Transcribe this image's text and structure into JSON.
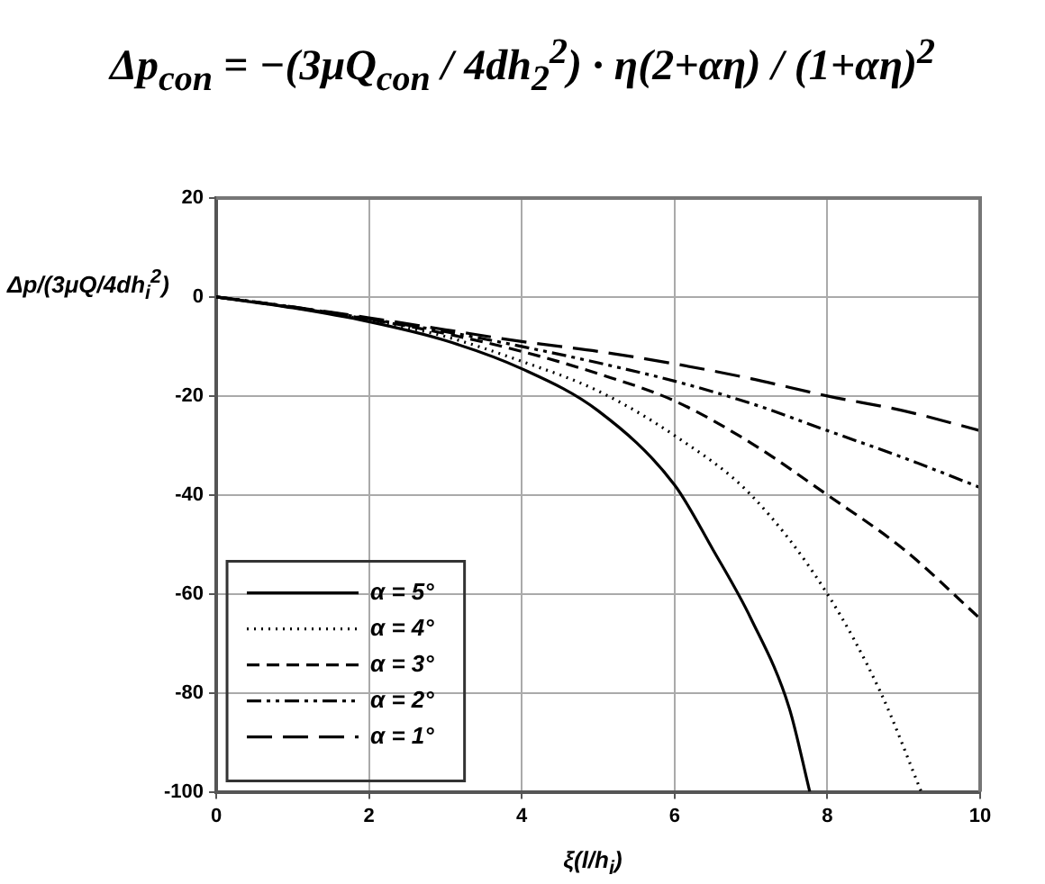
{
  "chart_data": {
    "type": "line",
    "title": "Δp$_{con}$ = −(3μQ$_{con}$ / 4dh$_{2}$$^{2}$) · η(2+αη) / (1+αη)$^{2}$",
    "xlabel": "ξ(l/h$_{i}$)",
    "ylabel": "Δp/(3μQ/4dh$_{i}$$^{2}$)",
    "xlim": [
      0,
      10
    ],
    "xticks": [
      0,
      2,
      4,
      6,
      8,
      10
    ],
    "ylim": [
      -100,
      20
    ],
    "yticks": [
      -100,
      -80,
      -60,
      -40,
      -20,
      0,
      20
    ],
    "grid": true,
    "legend": "bottom left",
    "marker": "none",
    "series": [
      {
        "name": "α = 5°",
        "color": "#000000",
        "line_style": "solid",
        "x": [
          0,
          1,
          2,
          3,
          4,
          5,
          6,
          6.5,
          7,
          7.5,
          7.77
        ],
        "values": [
          0,
          -2.2,
          -5,
          -8.8,
          -14.5,
          -23,
          -38,
          -51,
          -65,
          -83,
          -100
        ]
      },
      {
        "name": "α = 4°",
        "color": "#000000",
        "line_style": "dotted",
        "x": [
          0,
          1,
          2,
          3,
          4,
          5,
          6,
          7,
          8,
          8.7,
          9.23
        ],
        "values": [
          0,
          -2.1,
          -4.7,
          -8,
          -13,
          -19,
          -28,
          -40,
          -60,
          -80,
          -100
        ]
      },
      {
        "name": "α = 3°",
        "color": "#000000",
        "line_style": "dashed",
        "x": [
          0,
          1,
          2,
          3,
          4,
          5,
          6,
          7,
          8,
          9,
          10
        ],
        "values": [
          0,
          -2.1,
          -4.5,
          -7.4,
          -11,
          -15.5,
          -21,
          -29.5,
          -40,
          -51,
          -65
        ]
      },
      {
        "name": "α = 2°",
        "color": "#000000",
        "line_style": "dashdot",
        "x": [
          0,
          1,
          2,
          3,
          4,
          5,
          6,
          7,
          8,
          9,
          10
        ],
        "values": [
          0,
          -2,
          -4.4,
          -7,
          -10,
          -13.3,
          -17,
          -21.5,
          -27,
          -32.5,
          -38.5
        ]
      },
      {
        "name": "α = 1°",
        "color": "#000000",
        "line_style": "longdash",
        "x": [
          0,
          1,
          2,
          3,
          4,
          5,
          6,
          7,
          8,
          9,
          10
        ],
        "values": [
          0,
          -2,
          -4.2,
          -6.6,
          -9,
          -11,
          -13.5,
          -16.5,
          -20,
          -23,
          -27
        ]
      }
    ]
  }
}
